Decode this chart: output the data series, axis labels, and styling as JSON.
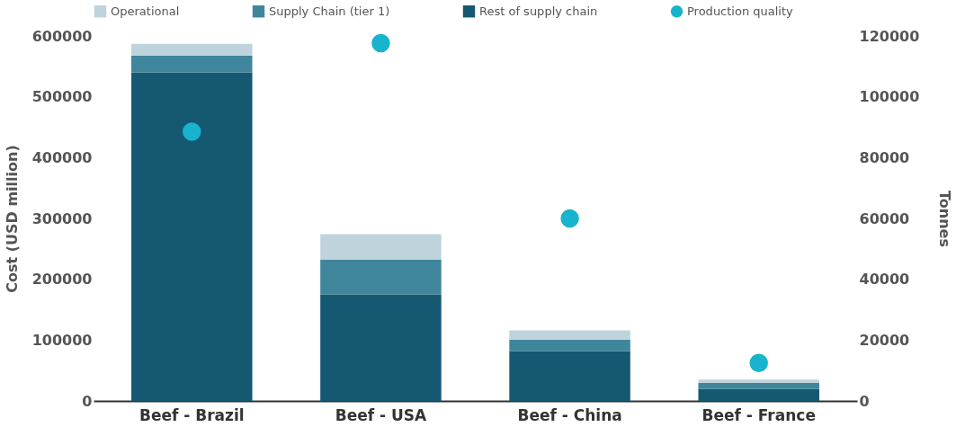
{
  "chart_data": {
    "type": "bar",
    "stacked": true,
    "ylabel": "Cost (USD million)",
    "y2label": "Tonnes",
    "categories": [
      "Beef - Brazil",
      "Beef - USA",
      "Beef - China",
      "Beef - France"
    ],
    "series": [
      {
        "name": "Rest of supply chain",
        "color": "#155872",
        "values": [
          540000,
          175000,
          82000,
          20000
        ]
      },
      {
        "name": "Supply Chain (tier 1)",
        "color": "#3f869c",
        "values": [
          28000,
          57000,
          19000,
          10000
        ]
      },
      {
        "name": "Operational",
        "color": "#bfd3dc",
        "values": [
          19000,
          42000,
          15000,
          5000
        ]
      },
      {
        "name": "Production quality",
        "color": "#18b3cc",
        "type": "scatter",
        "axis": "y2",
        "marker": "circle",
        "values": [
          88500,
          117600,
          60000,
          12500
        ]
      }
    ],
    "ylim": [
      0,
      600000
    ],
    "yticks": [
      0,
      100000,
      200000,
      300000,
      400000,
      500000,
      600000
    ],
    "y2lim": [
      0,
      120000
    ],
    "y2ticks": [
      0,
      20000,
      40000,
      60000,
      80000,
      100000,
      120000
    ],
    "grid": false,
    "legend": "top"
  }
}
